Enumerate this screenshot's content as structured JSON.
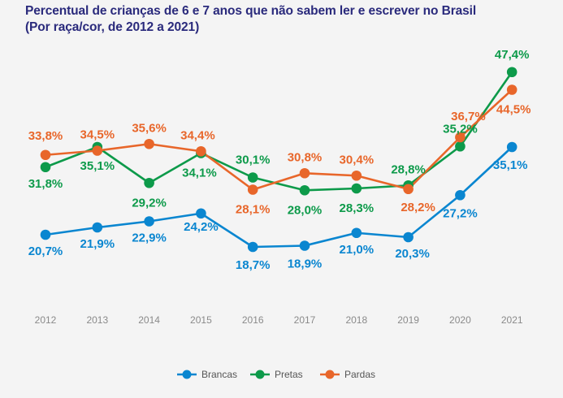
{
  "chart_data": {
    "type": "line",
    "title": "Percentual de crianças de 6 e 7 anos que não sabem ler e escrever no Brasil",
    "subtitle": "(Por raça/cor, de 2012 a 2021)",
    "xlabel": "",
    "ylabel": "",
    "x": [
      "2012",
      "2013",
      "2014",
      "2015",
      "2016",
      "2017",
      "2018",
      "2019",
      "2020",
      "2021"
    ],
    "grid": false,
    "legend_position": "bottom-center",
    "series": [
      {
        "name": "Brancas",
        "color": "#0a86d0",
        "values": [
          20.7,
          21.9,
          22.9,
          24.2,
          18.7,
          18.9,
          21.0,
          20.3,
          27.2,
          35.1
        ],
        "labels": [
          "20,7%",
          "21,9%",
          "22,9%",
          "24,2%",
          "18,7%",
          "18,9%",
          "21,0%",
          "20,3%",
          "27,2%",
          "35,1%"
        ]
      },
      {
        "name": "Pretas",
        "color": "#0d9a4a",
        "values": [
          31.8,
          35.1,
          29.2,
          34.1,
          30.1,
          28.0,
          28.3,
          28.8,
          35.2,
          47.4
        ],
        "labels": [
          "31,8%",
          "35,1%",
          "29,2%",
          "34,1%",
          "30,1%",
          "28,0%",
          "28,3%",
          "28,8%",
          "35,2%",
          "47,4%"
        ]
      },
      {
        "name": "Pardas",
        "color": "#e8662a",
        "values": [
          33.8,
          34.5,
          35.6,
          34.4,
          28.1,
          30.8,
          30.4,
          28.2,
          36.7,
          44.5
        ],
        "labels": [
          "33,8%",
          "34,5%",
          "35,6%",
          "34,4%",
          "28,1%",
          "30,8%",
          "30,4%",
          "28,2%",
          "36,7%",
          "44,5%"
        ]
      }
    ]
  }
}
